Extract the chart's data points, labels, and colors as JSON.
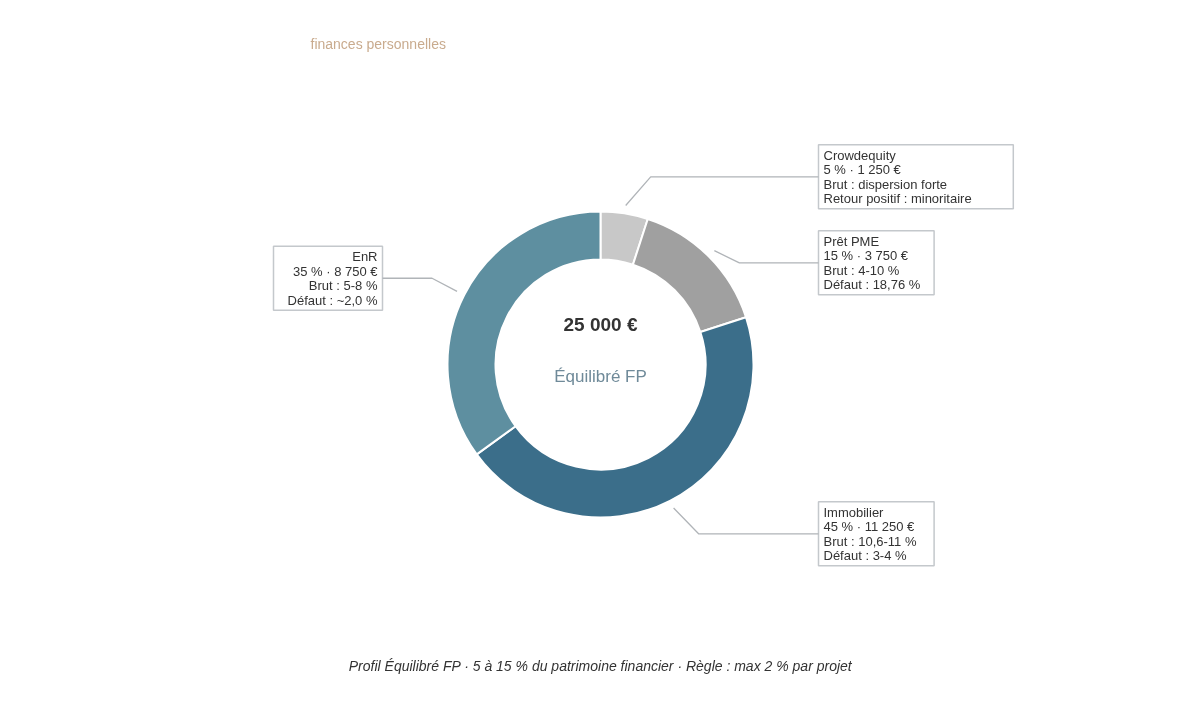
{
  "chart_data": {
    "type": "donut",
    "title": "25 000 €",
    "subtitle": "Équilibré FP",
    "categories": [
      "Crowdequity",
      "Prêt PME",
      "Immobilier",
      "EnR"
    ],
    "values": [
      5,
      15,
      45,
      35
    ],
    "colors": [
      "#c8c8c8",
      "#a0a0a0",
      "#3b6e8a",
      "#5e8fa0"
    ],
    "value_labels": [
      "5 % · 1 250 €\nBrut : dispersion forte\nRetour positif : minoritaire",
      "15 % · 3 750 €\nBrut : 4-10 %\nDéfaut : 18,76 %",
      "45 % · 11 250 €\nBrut : 10,6-11 %\nDéfaut : 3-4 %",
      "35 % · 8 750 €\nBrut : 5-8 %\nDéfaut : ~2,0 %"
    ],
    "annotations": [
      "finances personnelles",
      "Profil Équilibré FP · 5 à 15 % du patrimoine financier · Règle : max 2 % par projet"
    ]
  }
}
